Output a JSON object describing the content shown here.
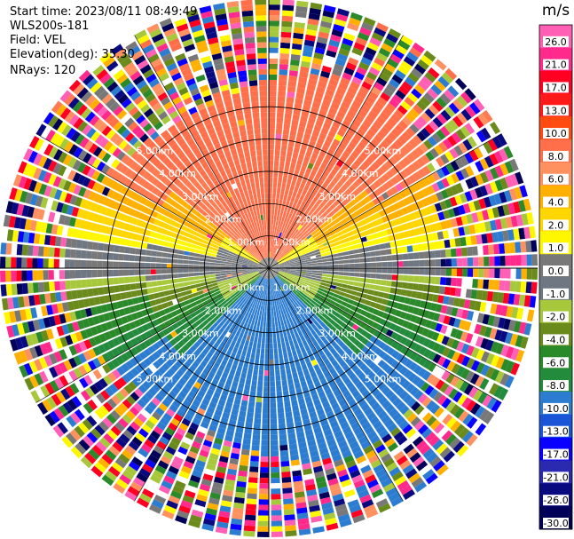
{
  "header": {
    "start_time": "Start time: 2023/08/11 08:49:49",
    "instrument": "WLS200s-181",
    "field": "Field: VEL",
    "elevation": "Elevation(deg): 35.30",
    "nrays": "NRays: 120"
  },
  "chart_data": {
    "type": "heatmap",
    "projection": "polar PPI",
    "field": "VEL",
    "rays": 120,
    "range_rings_km": [
      1.0,
      2.0,
      3.0,
      4.0,
      5.0
    ],
    "ring_labels": [
      "1.00km",
      "2.00km",
      "3.00km",
      "4.00km",
      "5.00km"
    ],
    "max_range_km": 5.0,
    "colorbar": {
      "unit": "m/s",
      "ticks": [
        "26.0",
        "21.0",
        "17.0",
        "13.0",
        "10.0",
        "8.0",
        "6.0",
        "4.0",
        "2.0",
        "1.0",
        "0.0",
        "-1.0",
        "-2.0",
        "-4.0",
        "-6.0",
        "-8.0",
        "-10.0",
        "-13.0",
        "-17.0",
        "-21.0",
        "-26.0",
        "-30.0"
      ],
      "colors": [
        "#ff5fb4",
        "#ff2a8c",
        "#ff0022",
        "#ff1a1a",
        "#ff4a10",
        "#ff6f4a",
        "#ff9060",
        "#ffb000",
        "#ffd600",
        "#fff700",
        "#787878",
        "#6f7882",
        "#a8c83c",
        "#6a8a1c",
        "#2a8a2a",
        "#228b3c",
        "#2c7dd2",
        "#1a55d8",
        "#0a00ff",
        "#2a2ab0",
        "#0a0a80",
        "#000058"
      ]
    },
    "velocity_pattern": {
      "north": "positive 8 to 10 m/s (salmon/red)",
      "center": "0 m/s (gray) near gates",
      "south": "negative -8 to -10 m/s (blue)",
      "edges": "noise (mixed colors)"
    }
  }
}
